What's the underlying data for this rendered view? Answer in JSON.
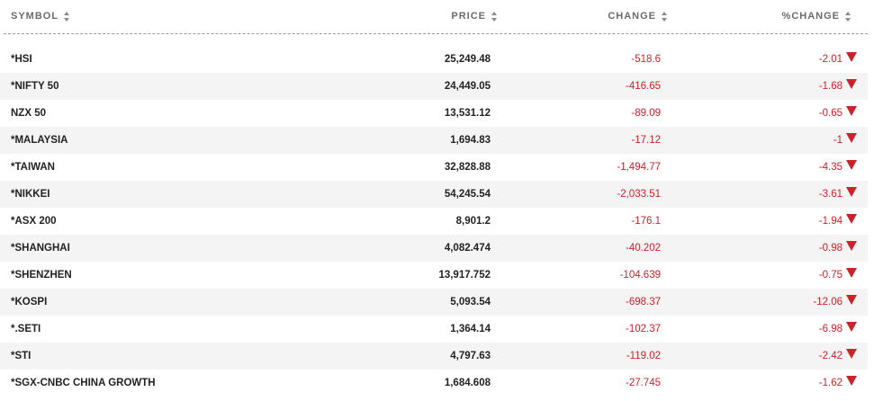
{
  "header": {
    "columns": [
      "SYMBOL",
      "PRICE",
      "CHANGE",
      "%CHANGE"
    ]
  },
  "table": {
    "rows": [
      [
        "*HSI",
        "25,249.48",
        "-518.6",
        "-2.01"
      ],
      [
        "*NIFTY 50",
        "24,449.05",
        "-416.65",
        "-1.68"
      ],
      [
        "NZX 50",
        "13,531.12",
        "-89.09",
        "-0.65"
      ],
      [
        "*MALAYSIA",
        "1,694.83",
        "-17.12",
        "-1"
      ],
      [
        "*TAIWAN",
        "32,828.88",
        "-1,494.77",
        "-4.35"
      ],
      [
        "*NIKKEI",
        "54,245.54",
        "-2,033.51",
        "-3.61"
      ],
      [
        "*ASX 200",
        "8,901.2",
        "-176.1",
        "-1.94"
      ],
      [
        "*SHANGHAI",
        "4,082.474",
        "-40.202",
        "-0.98"
      ],
      [
        "*SHENZHEN",
        "13,917.752",
        "-104.639",
        "-0.75"
      ],
      [
        "*KOSPI",
        "5,093.54",
        "-698.37",
        "-12.06"
      ],
      [
        "*.SETI",
        "1,364.14",
        "-102.37",
        "-6.98"
      ],
      [
        "*STI",
        "4,797.63",
        "-119.02",
        "-2.42"
      ],
      [
        "*SGX-CNBC CHINA GROWTH",
        "1,684.608",
        "-27.745",
        "-1.62"
      ]
    ]
  }
}
